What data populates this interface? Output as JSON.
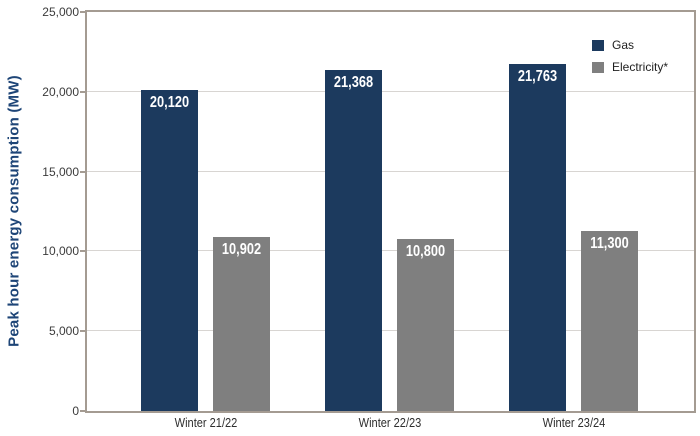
{
  "chart_data": {
    "type": "bar",
    "title": "",
    "xlabel": "",
    "ylabel": "Peak hour energy consumption (MW)",
    "categories": [
      "Winter 21/22",
      "Winter 22/23",
      "Winter 23/24"
    ],
    "series": [
      {
        "name": "Gas",
        "color": "#1c3a5e",
        "values": [
          20120,
          21368,
          21763
        ],
        "value_labels": [
          "20,120",
          "21,368",
          "21,763"
        ]
      },
      {
        "name": "Electricity*",
        "color": "#7f7f7f",
        "values": [
          10902,
          10800,
          11300
        ],
        "value_labels": [
          "10,902",
          "10,800",
          "11,300"
        ]
      }
    ],
    "ylim": [
      0,
      25000
    ],
    "ytick_interval": 5000,
    "ytick_labels": [
      "0",
      "5,000",
      "10,000",
      "15,000",
      "20,000",
      "25,000"
    ],
    "grid": true,
    "legend_position": "top-right"
  },
  "colors": {
    "axis_title": "#1e4577",
    "frame": "#a49b92",
    "gridline": "#d8d5d2"
  }
}
